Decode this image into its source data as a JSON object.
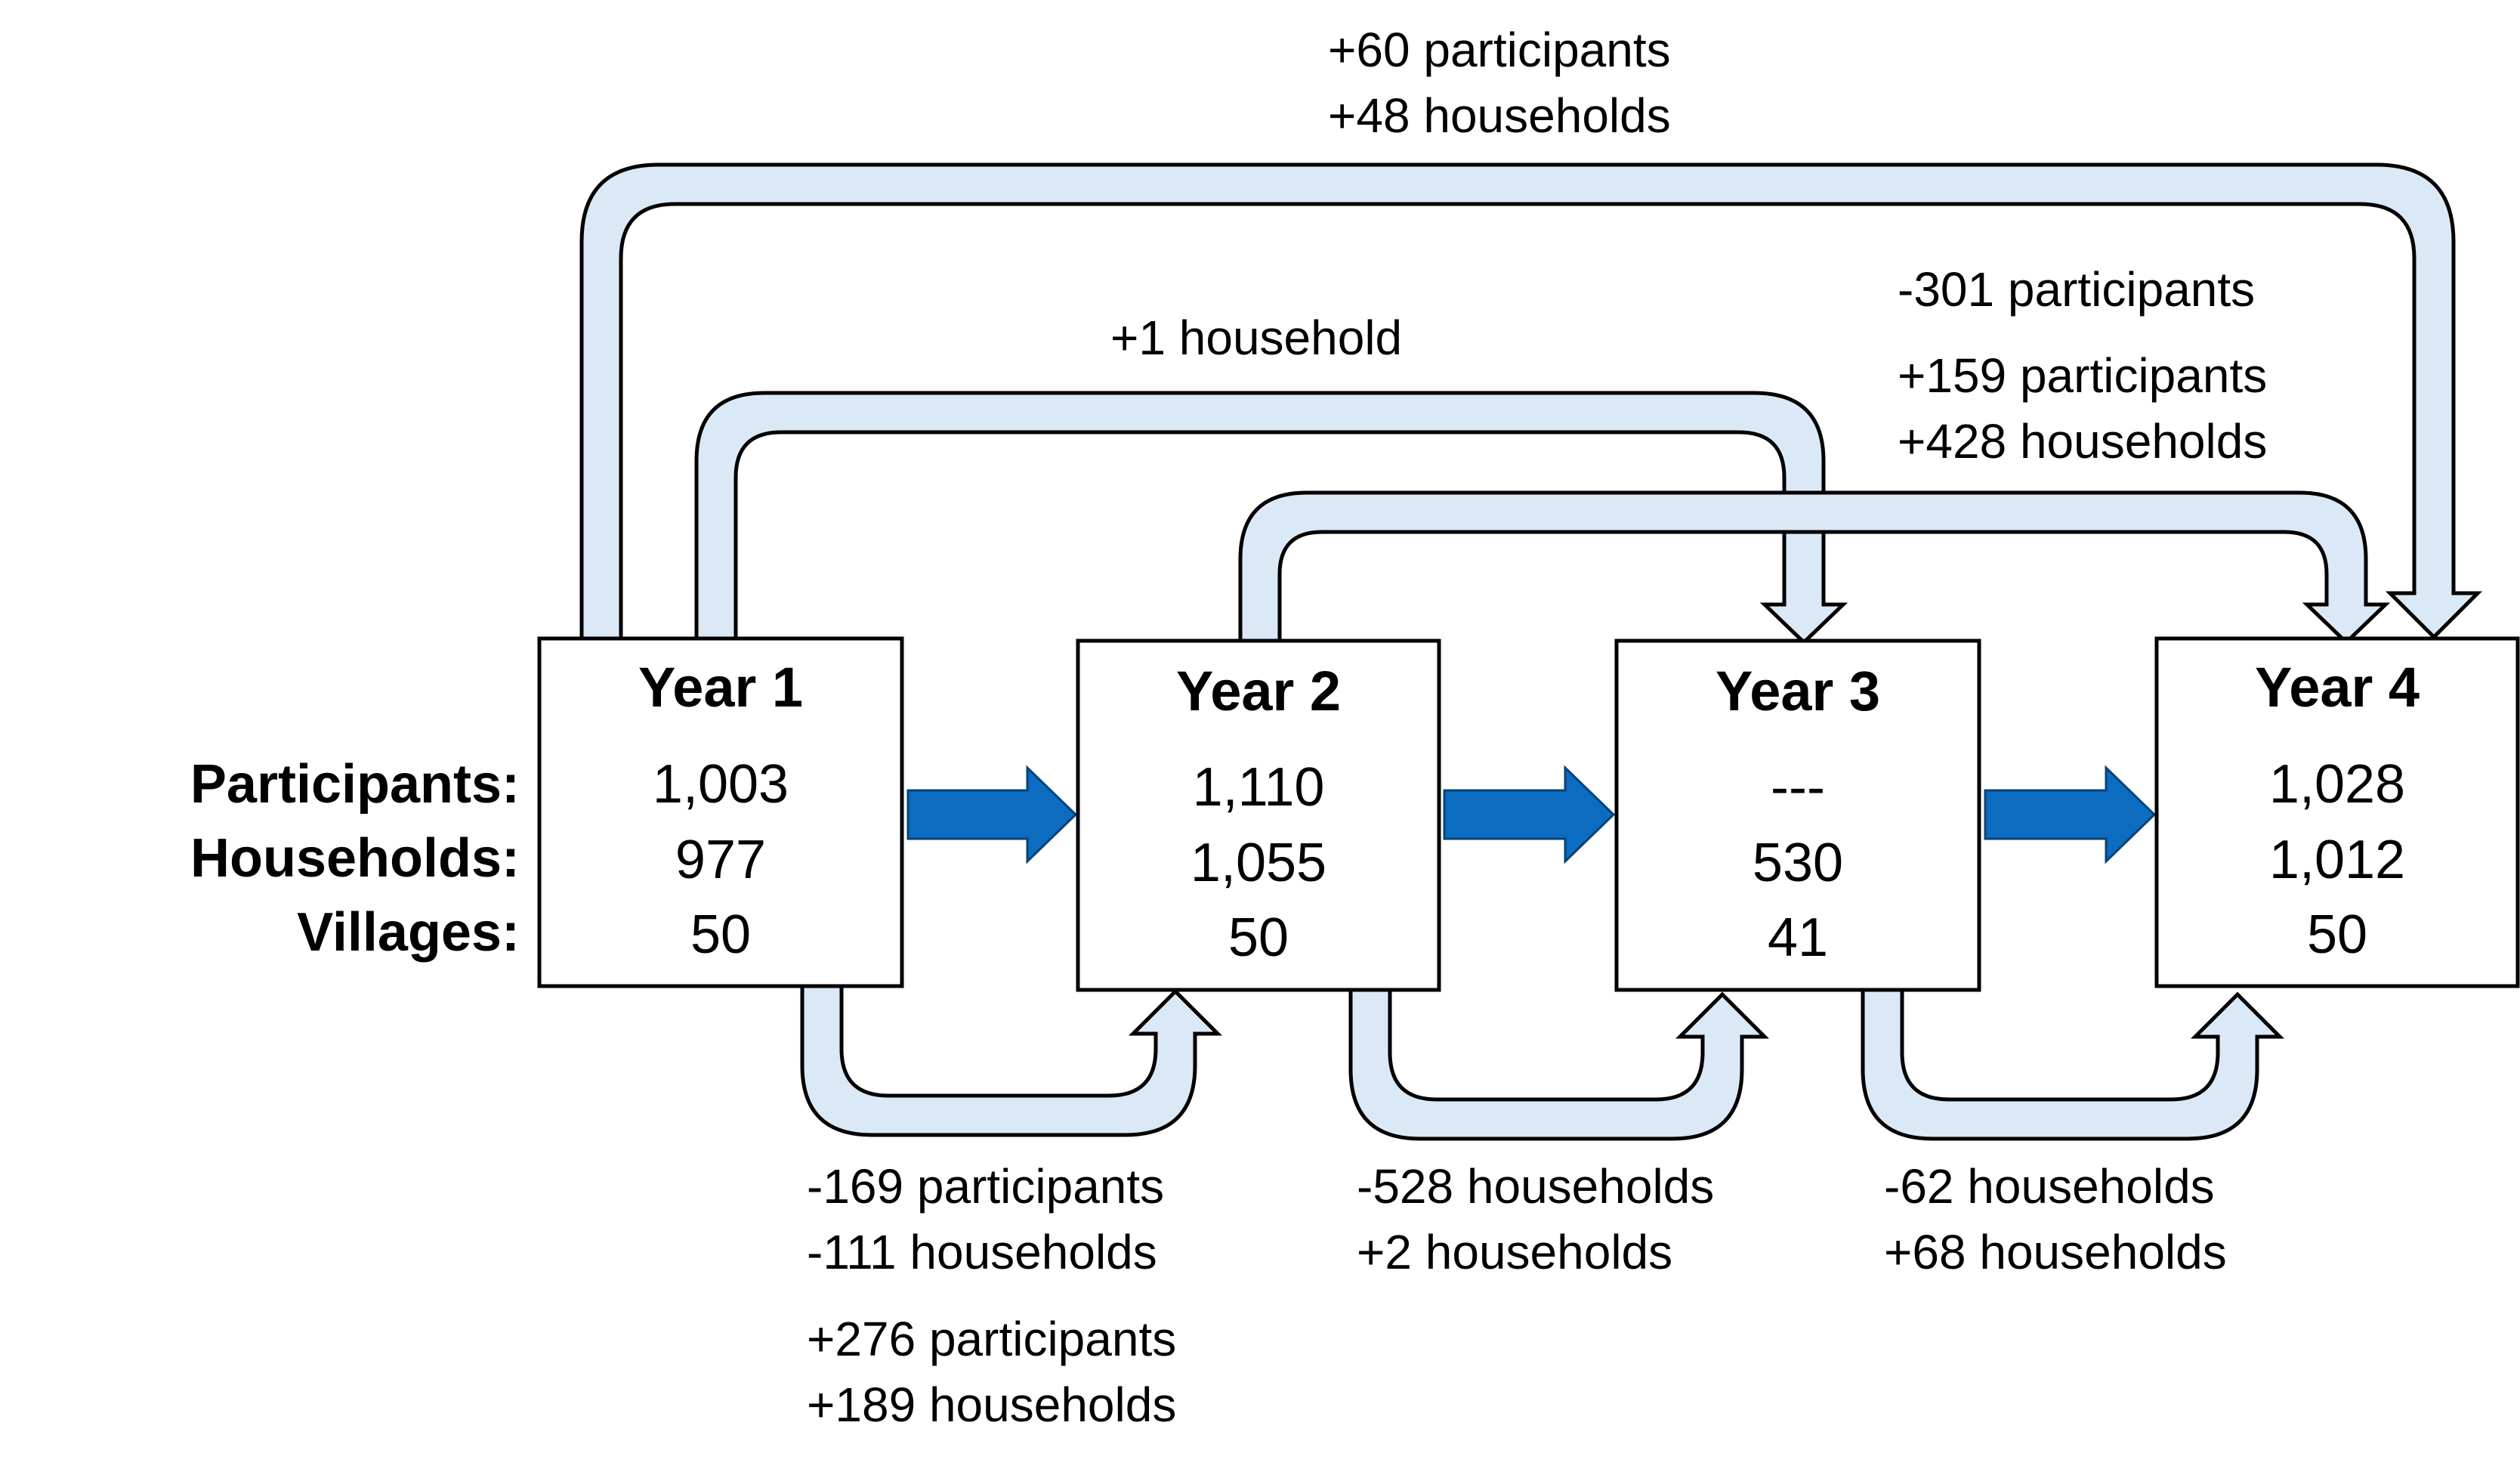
{
  "row_labels": {
    "participants": "Participants:",
    "households": "Households:",
    "villages": "Villages:"
  },
  "years": [
    {
      "title": "Year 1",
      "participants": "1,003",
      "households": "977",
      "villages": "50"
    },
    {
      "title": "Year 2",
      "participants": "1,110",
      "households": "1,055",
      "villages": "50"
    },
    {
      "title": "Year 3",
      "participants": "---",
      "households": "530",
      "villages": "41"
    },
    {
      "title": "Year 4",
      "participants": "1,028",
      "households": "1,012",
      "villages": "50"
    }
  ],
  "flows": {
    "y1_to_y4": [
      "+60 participants",
      "+48 households"
    ],
    "y1_to_y3": [
      "+1 household"
    ],
    "y2_to_y4": [
      "-301 participants",
      "+159 participants",
      "+428 households"
    ],
    "y1_to_y2": [
      "-169 participants",
      "-111 households",
      "+276 participants",
      "+189 households"
    ],
    "y2_to_y3": [
      "-528 households",
      "+2 households"
    ],
    "y3_to_y4": [
      "-62 households",
      "+68 households"
    ]
  },
  "colors": {
    "loop_fill": "#dbe8f5",
    "forward_arrow": "#0b6cc0",
    "outline": "#000000"
  }
}
